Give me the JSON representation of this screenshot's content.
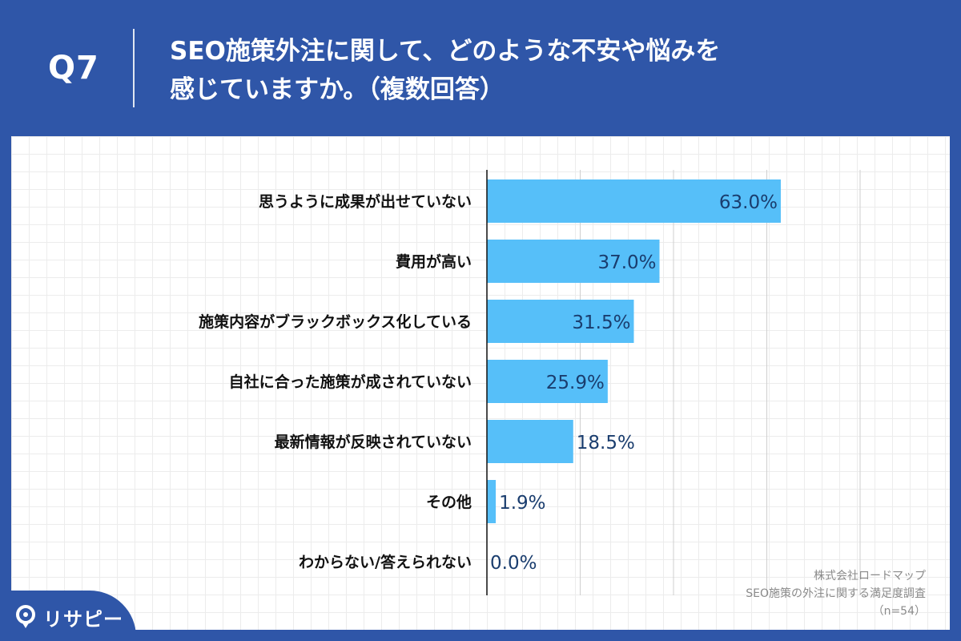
{
  "header": {
    "question_number": "Q7",
    "title_line1": "SEO施策外注に関して、どのような不安や悩みを",
    "title_line2": "感じていますか。（複数回答）"
  },
  "colors": {
    "background": "#2f56a8",
    "bar": "#56bff9",
    "value_label": "#1a3d6e",
    "category_label": "#111111"
  },
  "chart_data": {
    "type": "bar",
    "orientation": "horizontal",
    "categories": [
      "思うように成果が出せていない",
      "費用が高い",
      "施策内容がブラックボックス化している",
      "自社に合った施策が成されていない",
      "最新情報が反映されていない",
      "その他",
      "わからない/答えられない"
    ],
    "values": [
      63.0,
      37.0,
      31.5,
      25.9,
      18.5,
      1.9,
      0.0
    ],
    "value_labels": [
      "63.0%",
      "37.0%",
      "31.5%",
      "25.9%",
      "18.5%",
      "1.9%",
      "0.0%"
    ],
    "unit": "%",
    "xlim": [
      0,
      80
    ],
    "grid": true,
    "legend": "none"
  },
  "source": {
    "line1": "株式会社ロードマップ",
    "line2": "SEO施策の外注に関する満足度調査",
    "line3": "（n=54）"
  },
  "logo": {
    "text": "リサピー",
    "icon": "speech-bubble-pin-icon"
  }
}
